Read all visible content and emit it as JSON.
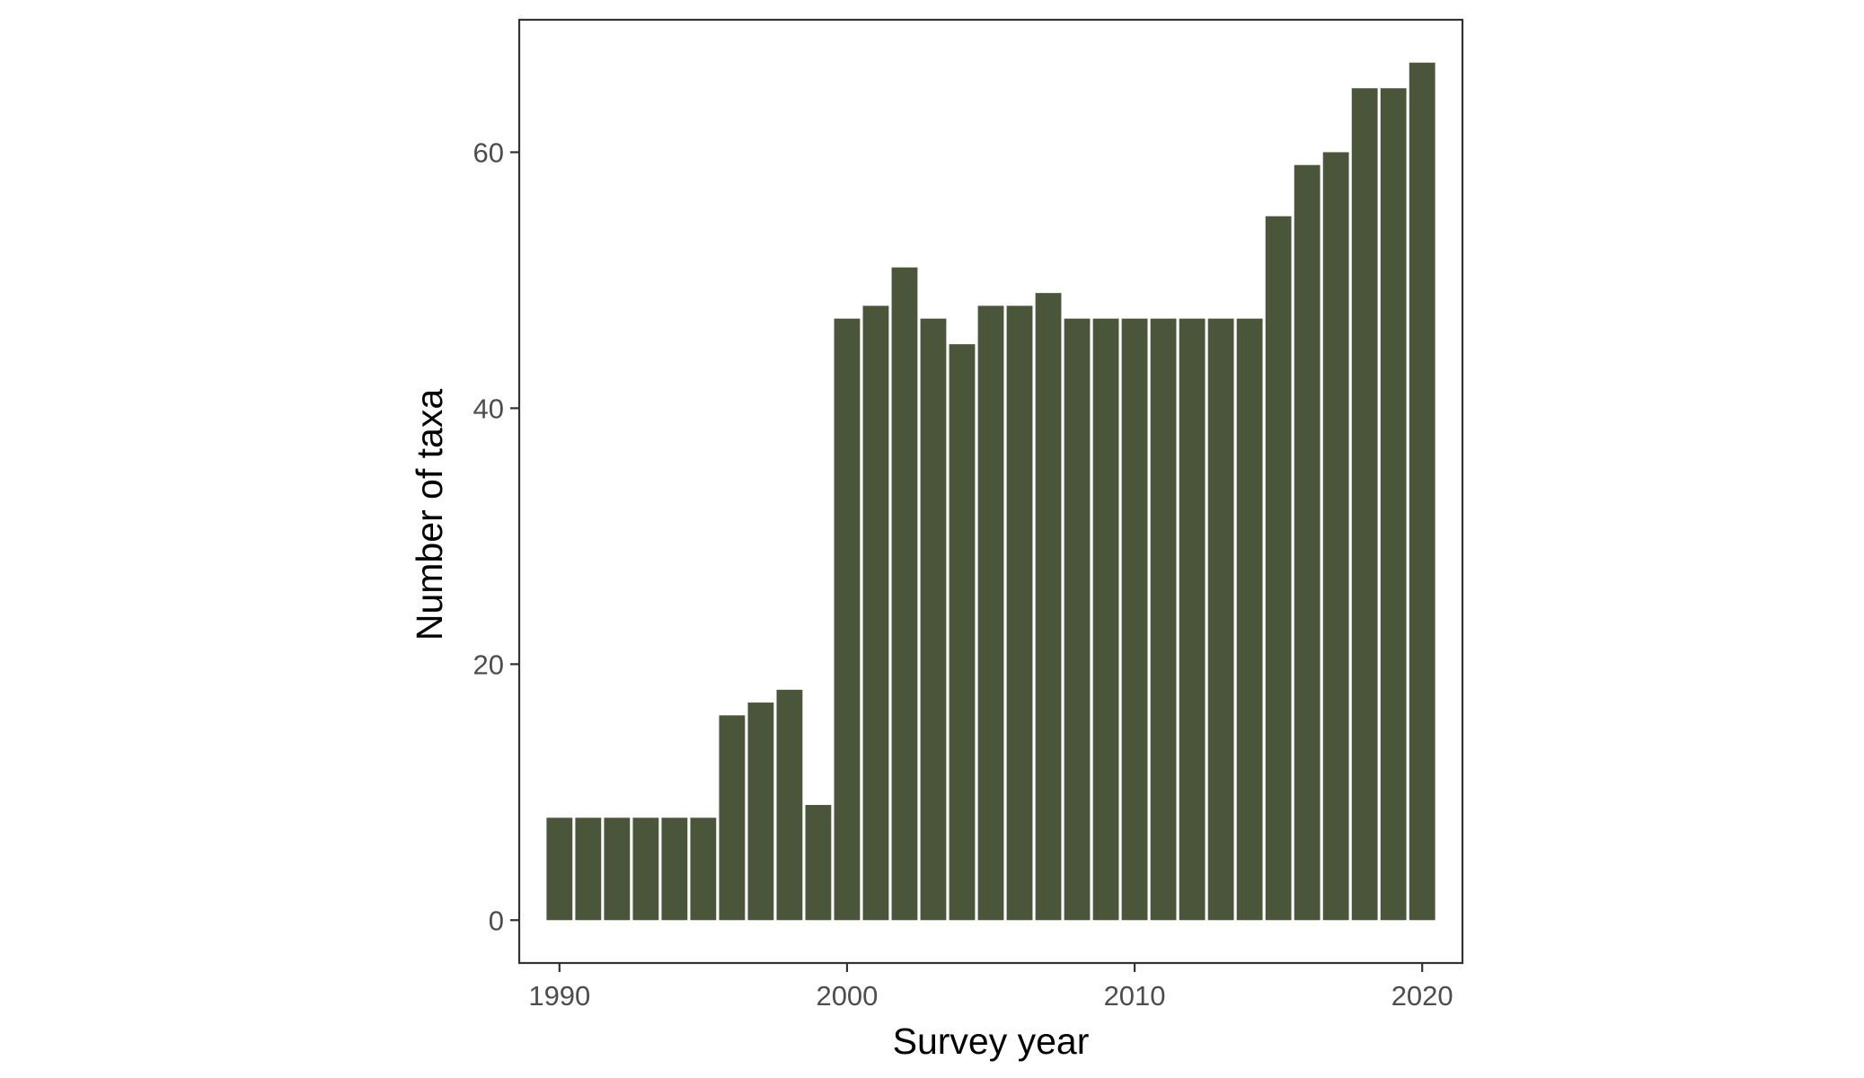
{
  "chart_data": {
    "type": "bar",
    "xlabel": "Survey year",
    "ylabel": "Number of taxa",
    "x": [
      1990,
      1991,
      1992,
      1993,
      1994,
      1995,
      1996,
      1997,
      1998,
      1999,
      2000,
      2001,
      2002,
      2003,
      2004,
      2005,
      2006,
      2007,
      2008,
      2009,
      2010,
      2011,
      2012,
      2013,
      2014,
      2015,
      2016,
      2017,
      2018,
      2019,
      2020
    ],
    "values": [
      8,
      8,
      8,
      8,
      8,
      8,
      16,
      17,
      18,
      9,
      47,
      48,
      51,
      47,
      45,
      48,
      48,
      49,
      47,
      47,
      47,
      47,
      47,
      47,
      47,
      55,
      59,
      60,
      65,
      65,
      67
    ],
    "xlim": [
      1988.6,
      2021.4
    ],
    "ylim": [
      -3.35,
      70.35
    ],
    "xticks": [
      "1990",
      "2000",
      "2010",
      "2020"
    ],
    "yticks": [
      "0",
      "20",
      "40",
      "60"
    ],
    "bar_color": "#4b553a",
    "grid": false,
    "legend": "none"
  }
}
